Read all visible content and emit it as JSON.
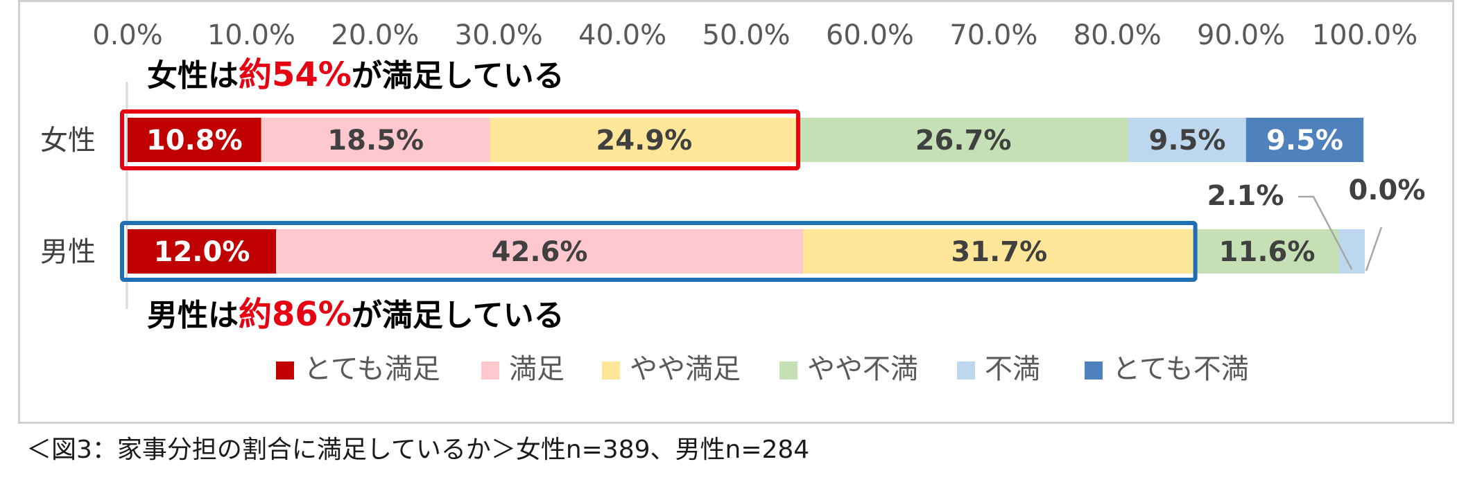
{
  "chart_data": {
    "type": "bar",
    "orientation": "horizontal",
    "stacked": true,
    "categories": [
      "女性",
      "男性"
    ],
    "series": [
      {
        "name": "とても満足",
        "values": [
          10.8,
          12.0
        ],
        "labels": [
          "10.8%",
          "12.0%"
        ],
        "color": "#c00000",
        "label_color": "#ffffff"
      },
      {
        "name": "満足",
        "values": [
          18.5,
          42.6
        ],
        "labels": [
          "18.5%",
          "42.6%"
        ],
        "color": "#ffc7ce",
        "label_color": "#404040"
      },
      {
        "name": "やや満足",
        "values": [
          24.9,
          31.7
        ],
        "labels": [
          "24.9%",
          "31.7%"
        ],
        "color": "#ffe699",
        "label_color": "#404040"
      },
      {
        "name": "やや不満",
        "values": [
          26.7,
          11.6
        ],
        "labels": [
          "26.7%",
          "11.6%"
        ],
        "color": "#c5e0b4",
        "label_color": "#404040"
      },
      {
        "name": "不満",
        "values": [
          9.5,
          2.1
        ],
        "labels": [
          "9.5%",
          "2.1%"
        ],
        "color": "#bdd7ee",
        "label_color": "#404040"
      },
      {
        "name": "とても不満",
        "values": [
          9.5,
          0.0
        ],
        "labels": [
          "9.5%",
          "0.0%"
        ],
        "color": "#4f81bd",
        "label_color": "#ffffff"
      }
    ],
    "xlim": [
      0,
      100
    ],
    "x_ticks": [
      "0.0%",
      "10.0%",
      "20.0%",
      "30.0%",
      "40.0%",
      "50.0%",
      "60.0%",
      "70.0%",
      "80.0%",
      "90.0%",
      "100.0%"
    ],
    "x_tick_values": [
      0,
      10,
      20,
      30,
      40,
      50,
      60,
      70,
      80,
      90,
      100
    ],
    "x_axis_position": "top",
    "grid": false,
    "legend_position": "bottom",
    "annotations": {
      "female": {
        "prefix": "女性は",
        "highlight": "約54%",
        "suffix": "が満足している",
        "highlight_color": "#e60012",
        "box_color": "#e60012",
        "box_end_value": 54.2
      },
      "male": {
        "prefix": "男性は",
        "highlight": "約86%",
        "suffix": "が満足している",
        "highlight_color": "#e60012",
        "box_color": "#1f6fb5",
        "box_end_value": 86.3
      }
    }
  },
  "caption": "＜図3：家事分担の割合に満足しているか＞女性n=389、男性n=284"
}
